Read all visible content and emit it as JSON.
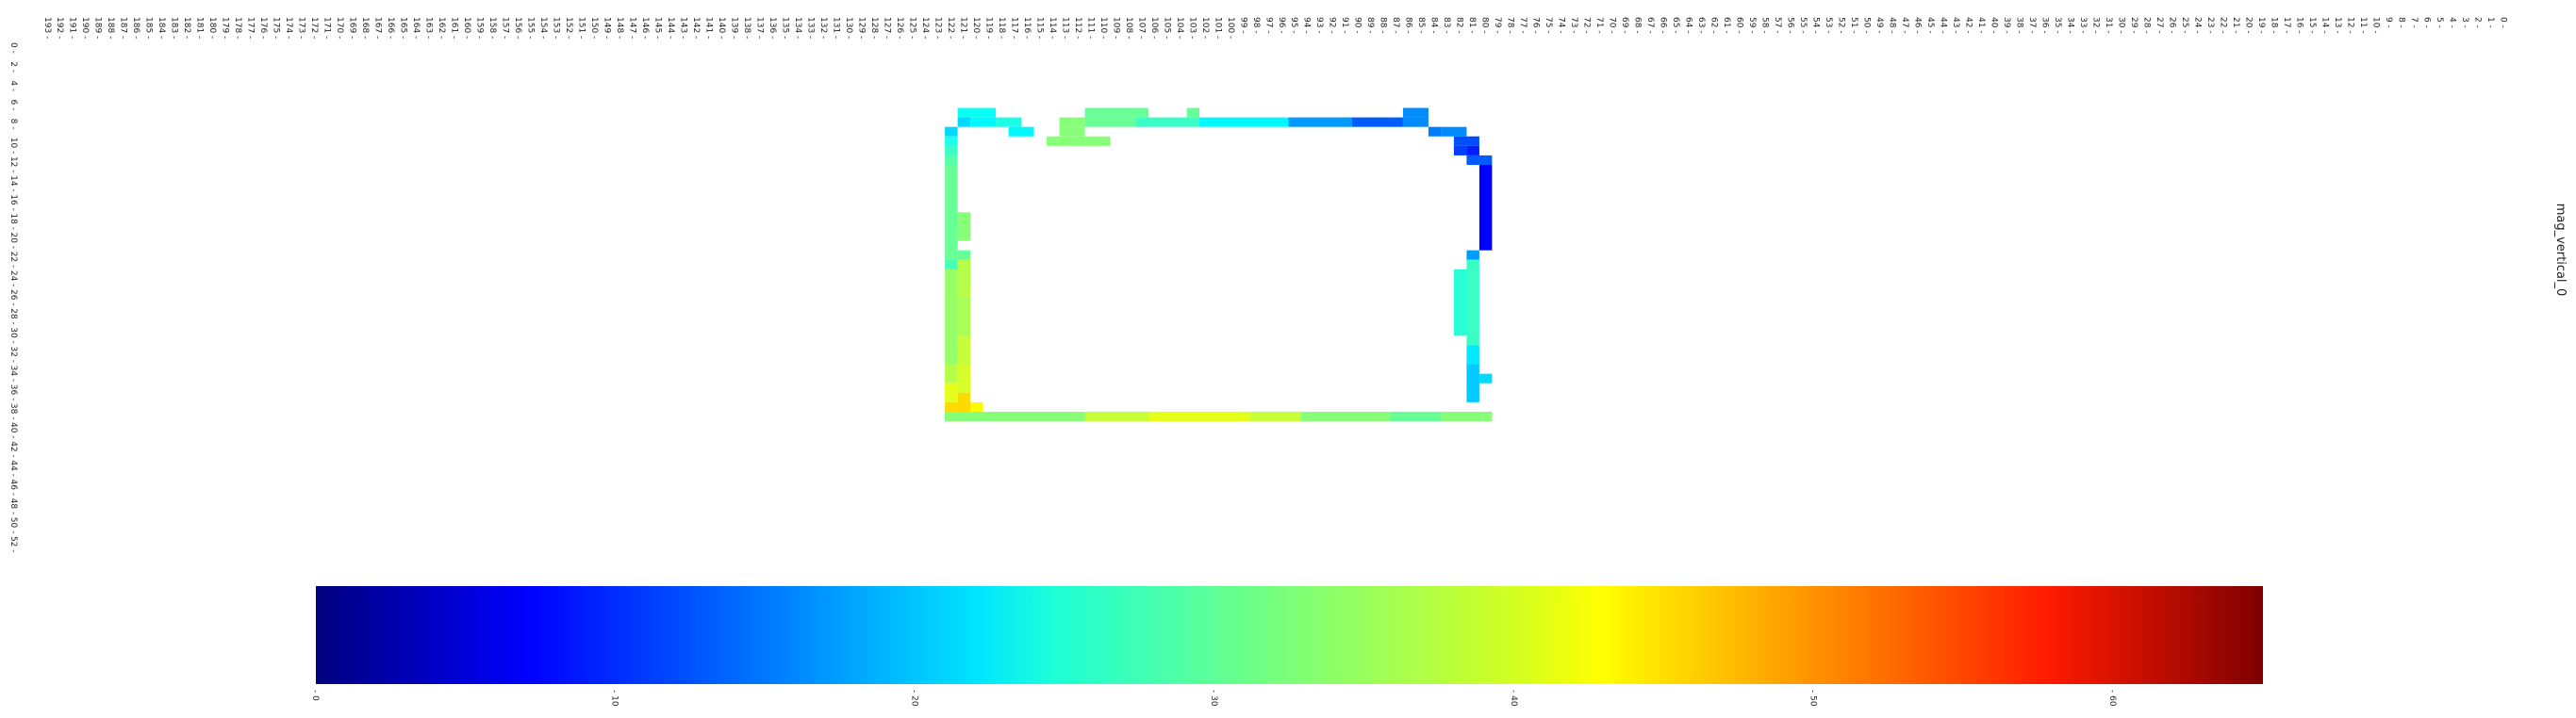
{
  "chart_data": {
    "type": "heatmap",
    "title": "mag_vertical_0",
    "x_ticks": [
      0,
      1,
      2,
      3,
      4,
      5,
      6,
      7,
      8,
      9,
      10,
      11,
      12,
      13,
      14,
      15,
      16,
      17,
      18,
      19,
      20,
      21,
      22,
      23,
      24,
      25,
      26,
      27,
      28,
      29,
      30,
      31,
      32,
      33,
      34,
      35,
      36,
      37,
      38,
      39,
      40,
      41,
      42,
      43,
      44,
      45,
      46,
      47,
      48,
      49,
      50,
      51,
      52,
      53,
      54,
      55,
      56,
      57,
      58,
      59,
      60,
      61,
      62,
      63,
      64,
      65,
      66,
      67,
      68,
      69,
      70,
      71,
      72,
      73,
      74,
      75,
      76,
      77,
      78,
      79,
      80,
      81,
      82,
      83,
      84,
      85,
      86,
      87,
      88,
      89,
      90,
      91,
      92,
      93,
      94,
      95,
      96,
      97,
      98,
      99,
      100,
      101,
      102,
      103,
      104,
      105,
      106,
      107,
      108,
      109,
      110,
      111,
      112,
      113,
      114,
      115,
      116,
      117,
      118,
      119,
      120,
      121,
      122,
      123,
      124,
      125,
      126,
      127,
      128,
      129,
      130,
      131,
      132,
      133,
      134,
      135,
      136,
      137,
      138,
      139,
      140,
      141,
      142,
      143,
      144,
      145,
      146,
      147,
      148,
      149,
      150,
      151,
      152,
      153,
      154,
      155,
      156,
      157,
      158,
      159,
      160,
      161,
      162,
      163,
      164,
      165,
      166,
      167,
      168,
      169,
      170,
      171,
      172,
      173,
      174,
      175,
      176,
      177,
      178,
      179,
      180,
      181,
      182,
      183,
      184,
      185,
      186,
      187,
      188,
      189,
      190,
      191,
      192,
      193
    ],
    "y_ticks": [
      0,
      2,
      4,
      6,
      8,
      10,
      12,
      14,
      16,
      18,
      20,
      22,
      24,
      26,
      28,
      30,
      32,
      34,
      36,
      38,
      40,
      42,
      44,
      46,
      48,
      50,
      52
    ],
    "x_range": [
      0,
      193
    ],
    "y_range": [
      0,
      53
    ],
    "colorbar": {
      "colormap": "jet",
      "range": [
        0,
        65
      ],
      "ticks": [
        0,
        10,
        20,
        30,
        40,
        50,
        60
      ]
    },
    "cells": [
      {
        "x_range": [
          85,
          87
        ],
        "y_range": [
          7,
          8
        ],
        "value": 17
      },
      {
        "x_range": [
          103,
          104
        ],
        "y_range": [
          7,
          8
        ],
        "value": 31
      },
      {
        "x_range": [
          107,
          112
        ],
        "y_range": [
          7,
          8
        ],
        "value": 31
      },
      {
        "x_range": [
          119,
          122
        ],
        "y_range": [
          7,
          8
        ],
        "value": 25
      },
      {
        "x_range": [
          85,
          87
        ],
        "y_range": [
          8,
          9
        ],
        "value": 17
      },
      {
        "x_range": [
          87,
          88
        ],
        "y_range": [
          8,
          9
        ],
        "value": 14
      },
      {
        "x_range": [
          88,
          91
        ],
        "y_range": [
          8,
          9
        ],
        "value": 14
      },
      {
        "x_range": [
          91,
          96
        ],
        "y_range": [
          8,
          9
        ],
        "value": 18
      },
      {
        "x_range": [
          96,
          103
        ],
        "y_range": [
          8,
          9
        ],
        "value": 24
      },
      {
        "x_range": [
          103,
          108
        ],
        "y_range": [
          8,
          9
        ],
        "value": 28
      },
      {
        "x_range": [
          108,
          112
        ],
        "y_range": [
          8,
          9
        ],
        "value": 31
      },
      {
        "x_range": [
          112,
          114
        ],
        "y_range": [
          8,
          9
        ],
        "value": 33
      },
      {
        "x_range": [
          117,
          119
        ],
        "y_range": [
          8,
          9
        ],
        "value": 26
      },
      {
        "x_range": [
          119,
          121
        ],
        "y_range": [
          8,
          9
        ],
        "value": 24
      },
      {
        "x_range": [
          121,
          122
        ],
        "y_range": [
          8,
          9
        ],
        "value": 22
      },
      {
        "x_range": [
          82,
          84
        ],
        "y_range": [
          9,
          10
        ],
        "value": 17
      },
      {
        "x_range": [
          84,
          85
        ],
        "y_range": [
          9,
          10
        ],
        "value": 16
      },
      {
        "x_range": [
          112,
          114
        ],
        "y_range": [
          9,
          10
        ],
        "value": 33
      },
      {
        "x_range": [
          116,
          118
        ],
        "y_range": [
          9,
          10
        ],
        "value": 24
      },
      {
        "x_range": [
          122,
          123
        ],
        "y_range": [
          9,
          10
        ],
        "value": 22
      },
      {
        "x_range": [
          122,
          123
        ],
        "y_range": [
          10,
          11
        ],
        "value": 26
      },
      {
        "x_range": [
          81,
          83
        ],
        "y_range": [
          10,
          11
        ],
        "value": 13
      },
      {
        "x_range": [
          110,
          115
        ],
        "y_range": [
          10,
          11
        ],
        "value": 33
      },
      {
        "x_range": [
          81,
          82
        ],
        "y_range": [
          11,
          12
        ],
        "value": 10
      },
      {
        "x_range": [
          82,
          83
        ],
        "y_range": [
          11,
          12
        ],
        "value": 12
      },
      {
        "x_range": [
          122,
          123
        ],
        "y_range": [
          11,
          12
        ],
        "value": 28
      },
      {
        "x_range": [
          80,
          82
        ],
        "y_range": [
          12,
          13
        ],
        "value": 14
      },
      {
        "x_range": [
          122,
          123
        ],
        "y_range": [
          12,
          13
        ],
        "value": 30
      },
      {
        "x_range": [
          80,
          81
        ],
        "y_range": [
          13,
          22
        ],
        "value": 8
      },
      {
        "x_range": [
          122,
          123
        ],
        "y_range": [
          13,
          23
        ],
        "value": 31
      },
      {
        "x_range": [
          121,
          122
        ],
        "y_range": [
          18,
          21
        ],
        "value": 33
      },
      {
        "x_range": [
          121,
          122
        ],
        "y_range": [
          22,
          23
        ],
        "value": 31
      },
      {
        "x_range": [
          122,
          123
        ],
        "y_range": [
          23,
          24
        ],
        "value": 29
      },
      {
        "x_range": [
          81,
          82
        ],
        "y_range": [
          22,
          23
        ],
        "value": 18
      },
      {
        "x_range": [
          81,
          82
        ],
        "y_range": [
          23,
          32
        ],
        "value": 28
      },
      {
        "x_range": [
          82,
          83
        ],
        "y_range": [
          24,
          31
        ],
        "value": 27
      },
      {
        "x_range": [
          81,
          82
        ],
        "y_range": [
          32,
          34
        ],
        "value": 23
      },
      {
        "x_range": [
          80,
          81
        ],
        "y_range": [
          35,
          36
        ],
        "value": 22
      },
      {
        "x_range": [
          81,
          82
        ],
        "y_range": [
          34,
          38
        ],
        "value": 21
      },
      {
        "x_range": [
          121,
          122
        ],
        "y_range": [
          23,
          27
        ],
        "value": 36
      },
      {
        "x_range": [
          122,
          123
        ],
        "y_range": [
          24,
          34
        ],
        "value": 34
      },
      {
        "x_range": [
          121,
          122
        ],
        "y_range": [
          27,
          31
        ],
        "value": 35
      },
      {
        "x_range": [
          122,
          123
        ],
        "y_range": [
          34,
          36
        ],
        "value": 36
      },
      {
        "x_range": [
          121,
          122
        ],
        "y_range": [
          31,
          34
        ],
        "value": 37
      },
      {
        "x_range": [
          121,
          122
        ],
        "y_range": [
          34,
          37
        ],
        "value": 38
      },
      {
        "x_range": [
          122,
          123
        ],
        "y_range": [
          36,
          38
        ],
        "value": 39
      },
      {
        "x_range": [
          122,
          123
        ],
        "y_range": [
          38,
          39
        ],
        "value": 43
      },
      {
        "x_range": [
          121,
          122
        ],
        "y_range": [
          37,
          40
        ],
        "value": 43
      },
      {
        "x_range": [
          120,
          121
        ],
        "y_range": [
          38,
          39
        ],
        "value": 41
      },
      {
        "x_range": [
          122,
          123
        ],
        "y_range": [
          39,
          40
        ],
        "value": 32
      },
      {
        "x_range": [
          80,
          123
        ],
        "y_range": [
          39,
          40
        ],
        "value": 33
      },
      {
        "x_range": [
          84,
          88
        ],
        "y_range": [
          39,
          40
        ],
        "value": 31
      },
      {
        "x_range": [
          95,
          99
        ],
        "y_range": [
          39,
          40
        ],
        "value": 37
      },
      {
        "x_range": [
          99,
          107
        ],
        "y_range": [
          39,
          40
        ],
        "value": 39
      },
      {
        "x_range": [
          107,
          112
        ],
        "y_range": [
          39,
          40
        ],
        "value": 37
      }
    ]
  }
}
